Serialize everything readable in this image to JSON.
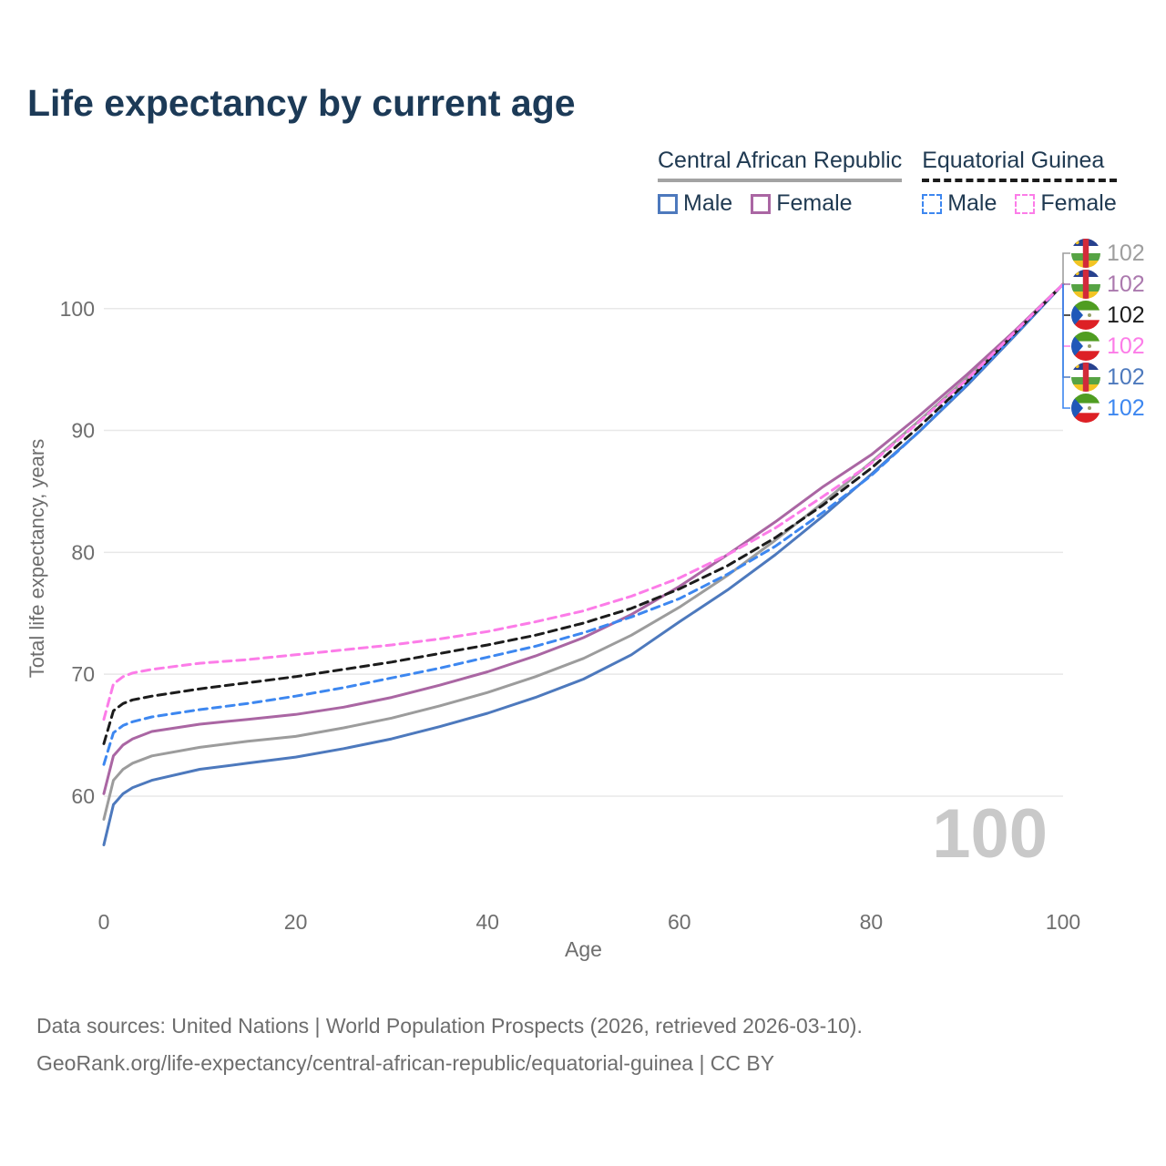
{
  "title": "Life expectancy by current age",
  "legend": {
    "groups": [
      {
        "label": "Central African Republic",
        "line_style": "solid",
        "underline_color": "#a3a3a3",
        "items": [
          {
            "label": "Male",
            "color": "#4d79bd",
            "dash": false
          },
          {
            "label": "Female",
            "color": "#aa66a3",
            "dash": false
          }
        ]
      },
      {
        "label": "Equatorial Guinea",
        "line_style": "dashed",
        "underline_color": "#1c1c1c",
        "items": [
          {
            "label": "Male",
            "color": "#3d87f0",
            "dash": true
          },
          {
            "label": "Female",
            "color": "#fc7ce8",
            "dash": true
          }
        ]
      }
    ]
  },
  "chart_data": {
    "type": "line",
    "title": "Life expectancy by current age",
    "xlabel": "Age",
    "ylabel": "Total life expectancy, years",
    "xlim": [
      0,
      100
    ],
    "ylim": [
      55,
      104
    ],
    "x_ticks": [
      0,
      20,
      40,
      60,
      80,
      100
    ],
    "y_ticks": [
      60,
      70,
      80,
      90,
      100
    ],
    "grid": "horizontal",
    "legend_position": "top-right",
    "x": [
      0,
      1,
      2,
      3,
      5,
      10,
      15,
      20,
      25,
      30,
      35,
      40,
      45,
      50,
      55,
      60,
      65,
      70,
      75,
      80,
      85,
      90,
      95,
      100
    ],
    "series": [
      {
        "name": "Central African Republic Male",
        "country": "Central African Republic",
        "sex": "Male",
        "color": "#4d79bd",
        "dash": false,
        "width": 3,
        "values": [
          56.0,
          59.3,
          60.2,
          60.7,
          61.3,
          62.2,
          62.7,
          63.2,
          63.9,
          64.7,
          65.7,
          66.8,
          68.1,
          69.6,
          71.6,
          74.3,
          76.9,
          79.8,
          83.0,
          86.4,
          89.9,
          93.7,
          97.8,
          102
        ]
      },
      {
        "name": "Central African Republic",
        "country": "Central African Republic",
        "sex": "Both",
        "color": "#9c9c9c",
        "dash": false,
        "width": 3,
        "values": [
          58.1,
          61.3,
          62.2,
          62.7,
          63.3,
          64.0,
          64.5,
          64.9,
          65.6,
          66.4,
          67.4,
          68.5,
          69.8,
          71.3,
          73.2,
          75.5,
          78.1,
          81.0,
          84.1,
          87.4,
          90.8,
          94.3,
          98.1,
          102
        ]
      },
      {
        "name": "Central African Republic Female",
        "country": "Central African Republic",
        "sex": "Female",
        "color": "#aa66a3",
        "dash": false,
        "width": 3,
        "values": [
          60.2,
          63.3,
          64.2,
          64.7,
          65.3,
          65.9,
          66.3,
          66.7,
          67.3,
          68.1,
          69.1,
          70.2,
          71.5,
          73.0,
          74.9,
          77.2,
          79.8,
          82.5,
          85.4,
          88.0,
          91.2,
          94.6,
          98.2,
          102
        ]
      },
      {
        "name": "Equatorial Guinea Male",
        "country": "Equatorial Guinea",
        "sex": "Male",
        "color": "#3d87f0",
        "dash": true,
        "width": 3,
        "values": [
          62.6,
          65.2,
          65.8,
          66.1,
          66.5,
          67.1,
          67.6,
          68.2,
          68.9,
          69.7,
          70.5,
          71.4,
          72.3,
          73.4,
          74.7,
          76.2,
          78.2,
          80.5,
          83.3,
          86.3,
          89.9,
          93.8,
          97.9,
          102
        ]
      },
      {
        "name": "Equatorial Guinea",
        "country": "Equatorial Guinea",
        "sex": "Both",
        "color": "#1c1c1c",
        "dash": true,
        "width": 3,
        "values": [
          64.3,
          67.0,
          67.6,
          67.9,
          68.2,
          68.8,
          69.3,
          69.8,
          70.4,
          71.0,
          71.7,
          72.4,
          73.2,
          74.2,
          75.4,
          77.0,
          78.9,
          81.2,
          83.9,
          86.9,
          90.3,
          94.0,
          98.0,
          102
        ]
      },
      {
        "name": "Equatorial Guinea Female",
        "country": "Equatorial Guinea",
        "sex": "Female",
        "color": "#fc7ce8",
        "dash": true,
        "width": 3,
        "values": [
          66.3,
          69.2,
          69.8,
          70.1,
          70.4,
          70.9,
          71.2,
          71.6,
          72.0,
          72.4,
          72.9,
          73.5,
          74.3,
          75.2,
          76.4,
          77.9,
          79.8,
          82.0,
          84.6,
          87.3,
          90.7,
          94.2,
          98.1,
          102
        ]
      }
    ],
    "end_labels": [
      {
        "flag": "central-african-republic",
        "value": "102",
        "color": "#9e9e9e",
        "series": "Central African Republic"
      },
      {
        "flag": "central-african-republic",
        "value": "102",
        "color": "#ab79ae",
        "series": "Central African Republic Female"
      },
      {
        "flag": "equatorial-guinea",
        "value": "102",
        "color": "#1c1c1c",
        "series": "Equatorial Guinea"
      },
      {
        "flag": "equatorial-guinea",
        "value": "102",
        "color": "#fc7ce8",
        "series": "Equatorial Guinea Female"
      },
      {
        "flag": "central-african-republic",
        "value": "102",
        "color": "#4d79bd",
        "series": "Central African Republic Male"
      },
      {
        "flag": "equatorial-guinea",
        "value": "102",
        "color": "#3d87f0",
        "series": "Equatorial Guinea Male"
      }
    ]
  },
  "watermark": "100",
  "footer": {
    "line1": "Data sources: United Nations | World Population Prospects (2026, retrieved 2026-03-10).",
    "line2": "GeoRank.org/life-expectancy/central-african-republic/equatorial-guinea | CC BY"
  }
}
